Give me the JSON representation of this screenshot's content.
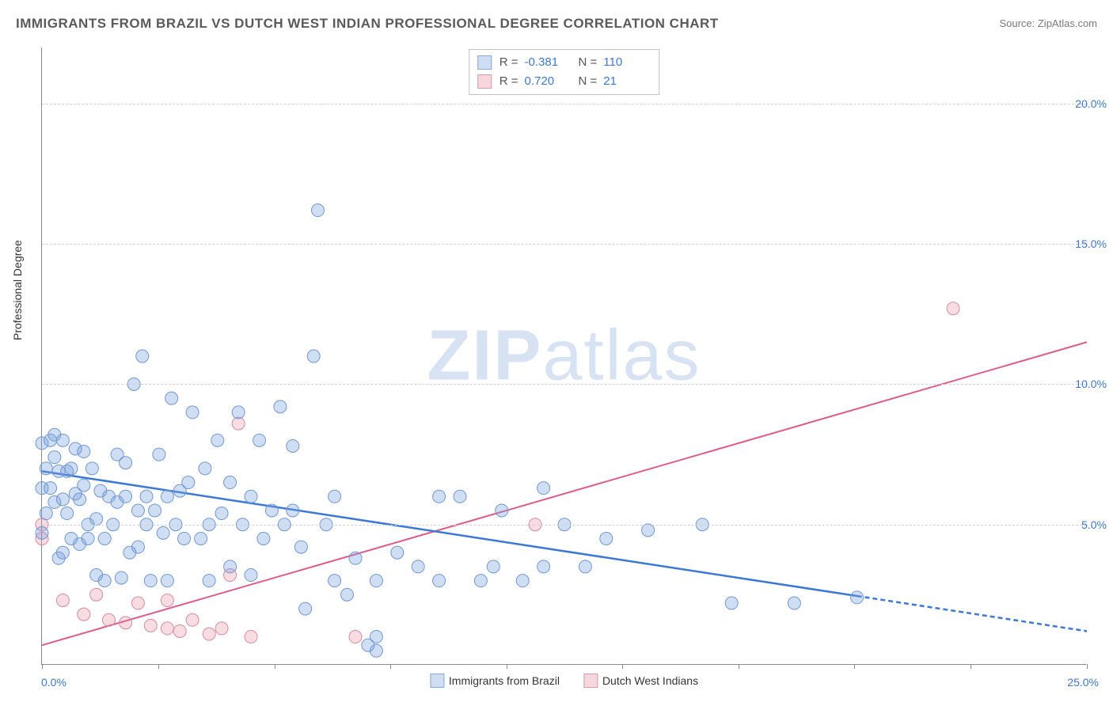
{
  "title": "IMMIGRANTS FROM BRAZIL VS DUTCH WEST INDIAN PROFESSIONAL DEGREE CORRELATION CHART",
  "source": "Source: ZipAtlas.com",
  "ylabel": "Professional Degree",
  "watermark_a": "ZIP",
  "watermark_b": "atlas",
  "xlim": [
    0,
    25
  ],
  "ylim": [
    0,
    22
  ],
  "x_ticks_label_left": "0.0%",
  "x_ticks_label_right": "25.0%",
  "x_tick_positions": [
    0,
    2.78,
    5.56,
    8.33,
    11.11,
    13.89,
    16.67,
    19.44,
    22.22,
    25
  ],
  "y_gridlines": [
    {
      "v": 5,
      "label": "5.0%"
    },
    {
      "v": 10,
      "label": "10.0%"
    },
    {
      "v": 15,
      "label": "15.0%"
    },
    {
      "v": 20,
      "label": "20.0%"
    }
  ],
  "legend_top": [
    {
      "series": "blue",
      "r": "-0.381",
      "n": "110"
    },
    {
      "series": "pink",
      "r": "0.720",
      "n": "21"
    }
  ],
  "legend_bottom": [
    {
      "series": "blue",
      "label": "Immigrants from Brazil"
    },
    {
      "series": "pink",
      "label": "Dutch West Indians"
    }
  ],
  "series": {
    "blue": {
      "fill": "rgba(120,160,220,0.35)",
      "stroke": "#6f98d4",
      "line_stroke": "#3b78d8",
      "line_width": 2.5,
      "marker_r": 8,
      "trend": {
        "x1": 0,
        "y1": 6.9,
        "x2": 25,
        "y2": 1.2,
        "dash_from_x": 19.5
      },
      "points": [
        [
          0.0,
          4.7
        ],
        [
          0.0,
          6.3
        ],
        [
          0.0,
          7.9
        ],
        [
          0.1,
          5.4
        ],
        [
          0.1,
          7.0
        ],
        [
          0.2,
          6.3
        ],
        [
          0.2,
          8.0
        ],
        [
          0.3,
          7.4
        ],
        [
          0.3,
          8.2
        ],
        [
          0.3,
          5.8
        ],
        [
          0.4,
          3.8
        ],
        [
          0.4,
          6.9
        ],
        [
          0.5,
          4.0
        ],
        [
          0.5,
          5.9
        ],
        [
          0.5,
          8.0
        ],
        [
          0.6,
          6.9
        ],
        [
          0.6,
          5.4
        ],
        [
          0.7,
          4.5
        ],
        [
          0.7,
          7.0
        ],
        [
          0.8,
          6.1
        ],
        [
          0.8,
          7.7
        ],
        [
          0.9,
          4.3
        ],
        [
          0.9,
          5.9
        ],
        [
          1.0,
          6.4
        ],
        [
          1.0,
          7.6
        ],
        [
          1.1,
          4.5
        ],
        [
          1.1,
          5.0
        ],
        [
          1.2,
          7.0
        ],
        [
          1.3,
          5.2
        ],
        [
          1.3,
          3.2
        ],
        [
          1.4,
          6.2
        ],
        [
          1.5,
          4.5
        ],
        [
          1.5,
          3.0
        ],
        [
          1.6,
          6.0
        ],
        [
          1.7,
          5.0
        ],
        [
          1.8,
          7.5
        ],
        [
          1.8,
          5.8
        ],
        [
          1.9,
          3.1
        ],
        [
          2.0,
          6.0
        ],
        [
          2.0,
          7.2
        ],
        [
          2.1,
          4.0
        ],
        [
          2.2,
          10.0
        ],
        [
          2.3,
          5.5
        ],
        [
          2.3,
          4.2
        ],
        [
          2.4,
          11.0
        ],
        [
          2.5,
          5.0
        ],
        [
          2.5,
          6.0
        ],
        [
          2.6,
          3.0
        ],
        [
          2.7,
          5.5
        ],
        [
          2.8,
          7.5
        ],
        [
          2.9,
          4.7
        ],
        [
          3.0,
          6.0
        ],
        [
          3.0,
          3.0
        ],
        [
          3.1,
          9.5
        ],
        [
          3.2,
          5.0
        ],
        [
          3.3,
          6.2
        ],
        [
          3.4,
          4.5
        ],
        [
          3.5,
          6.5
        ],
        [
          3.6,
          9.0
        ],
        [
          3.8,
          4.5
        ],
        [
          3.9,
          7.0
        ],
        [
          4.0,
          5.0
        ],
        [
          4.0,
          3.0
        ],
        [
          4.2,
          8.0
        ],
        [
          4.3,
          5.4
        ],
        [
          4.5,
          6.5
        ],
        [
          4.5,
          3.5
        ],
        [
          4.7,
          9.0
        ],
        [
          4.8,
          5.0
        ],
        [
          5.0,
          6.0
        ],
        [
          5.0,
          3.2
        ],
        [
          5.2,
          8.0
        ],
        [
          5.3,
          4.5
        ],
        [
          5.5,
          5.5
        ],
        [
          5.7,
          9.2
        ],
        [
          5.8,
          5.0
        ],
        [
          6.0,
          5.5
        ],
        [
          6.0,
          7.8
        ],
        [
          6.2,
          4.2
        ],
        [
          6.3,
          2.0
        ],
        [
          6.5,
          11.0
        ],
        [
          6.6,
          16.2
        ],
        [
          6.8,
          5.0
        ],
        [
          7.0,
          3.0
        ],
        [
          7.0,
          6.0
        ],
        [
          7.3,
          2.5
        ],
        [
          7.5,
          3.8
        ],
        [
          8.0,
          3.0
        ],
        [
          8.0,
          1.0
        ],
        [
          8.0,
          0.5
        ],
        [
          8.5,
          4.0
        ],
        [
          9.0,
          3.5
        ],
        [
          9.5,
          6.0
        ],
        [
          9.5,
          3.0
        ],
        [
          10.0,
          6.0
        ],
        [
          10.5,
          3.0
        ],
        [
          10.8,
          3.5
        ],
        [
          11.0,
          5.5
        ],
        [
          11.5,
          3.0
        ],
        [
          12.0,
          3.5
        ],
        [
          12.0,
          6.3
        ],
        [
          12.5,
          5.0
        ],
        [
          13.0,
          3.5
        ],
        [
          13.5,
          4.5
        ],
        [
          14.5,
          4.8
        ],
        [
          15.8,
          5.0
        ],
        [
          16.5,
          2.2
        ],
        [
          18.0,
          2.2
        ],
        [
          19.5,
          2.4
        ],
        [
          7.8,
          0.7
        ]
      ]
    },
    "pink": {
      "fill": "rgba(230,140,160,0.30)",
      "stroke": "#d88aa0",
      "line_stroke": "#e05a8a",
      "line_width": 2,
      "marker_r": 8,
      "trend": {
        "x1": 0,
        "y1": 0.7,
        "x2": 25,
        "y2": 11.5,
        "dash_from_x": null
      },
      "points": [
        [
          0.0,
          5.0
        ],
        [
          0.0,
          4.5
        ],
        [
          0.5,
          2.3
        ],
        [
          1.0,
          1.8
        ],
        [
          1.3,
          2.5
        ],
        [
          1.6,
          1.6
        ],
        [
          2.0,
          1.5
        ],
        [
          2.3,
          2.2
        ],
        [
          2.6,
          1.4
        ],
        [
          3.0,
          1.3
        ],
        [
          3.0,
          2.3
        ],
        [
          3.3,
          1.2
        ],
        [
          3.6,
          1.6
        ],
        [
          4.0,
          1.1
        ],
        [
          4.3,
          1.3
        ],
        [
          4.5,
          3.2
        ],
        [
          4.7,
          8.6
        ],
        [
          5.0,
          1.0
        ],
        [
          7.5,
          1.0
        ],
        [
          11.8,
          5.0
        ],
        [
          21.8,
          12.7
        ]
      ]
    }
  }
}
